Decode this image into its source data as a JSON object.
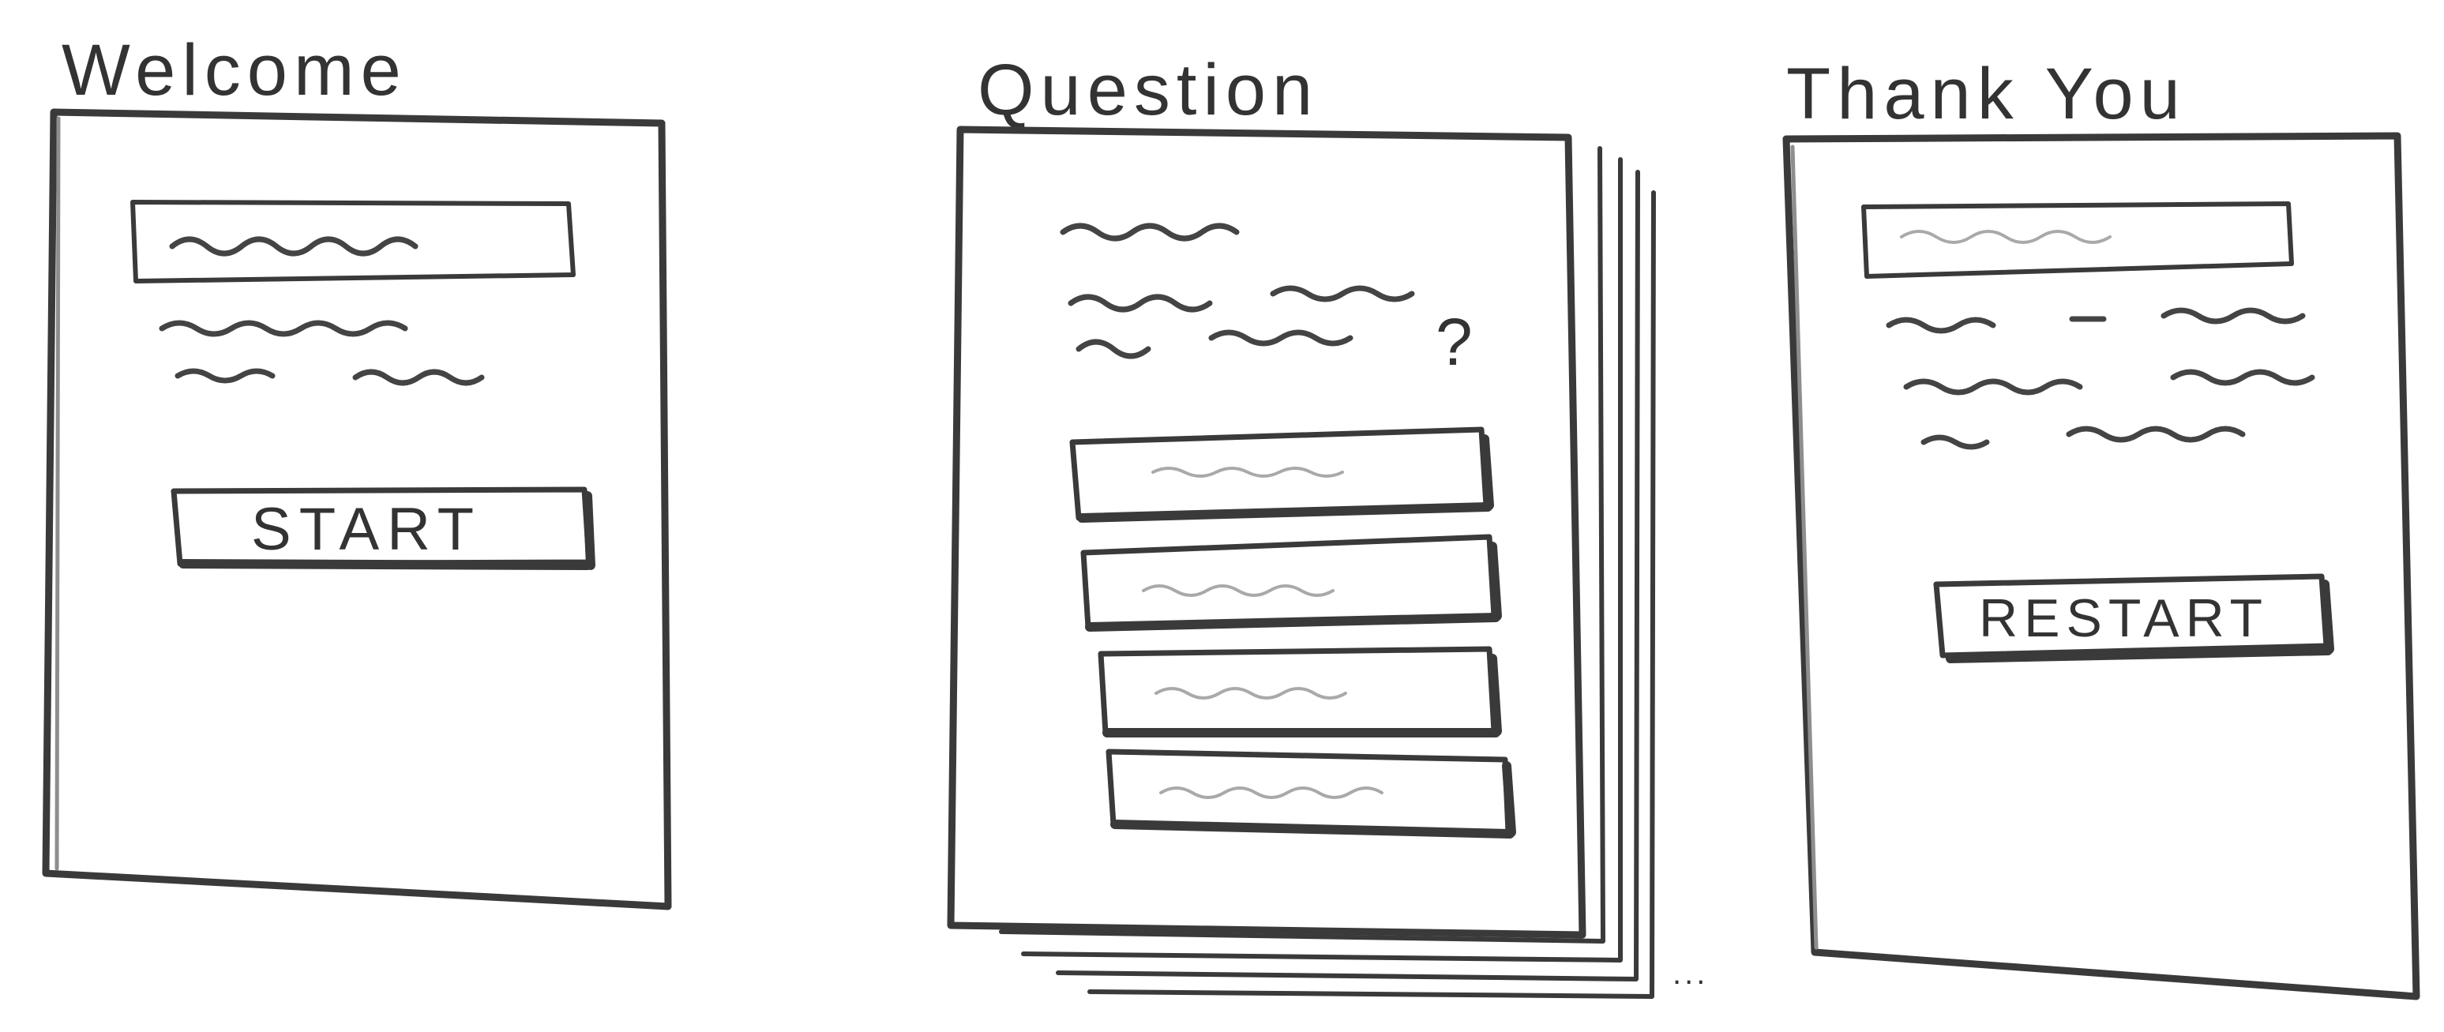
{
  "screens": {
    "welcome": {
      "title": "Welcome",
      "button_label": "START"
    },
    "question": {
      "title": "Question",
      "question_mark": "?",
      "more_indicator": "..."
    },
    "thank_you": {
      "title": "Thank You",
      "button_label": "RESTART"
    }
  },
  "colors": {
    "ink": "#3a3a3a",
    "pencil": "#a9a9a9",
    "paper": "#ffffff"
  }
}
